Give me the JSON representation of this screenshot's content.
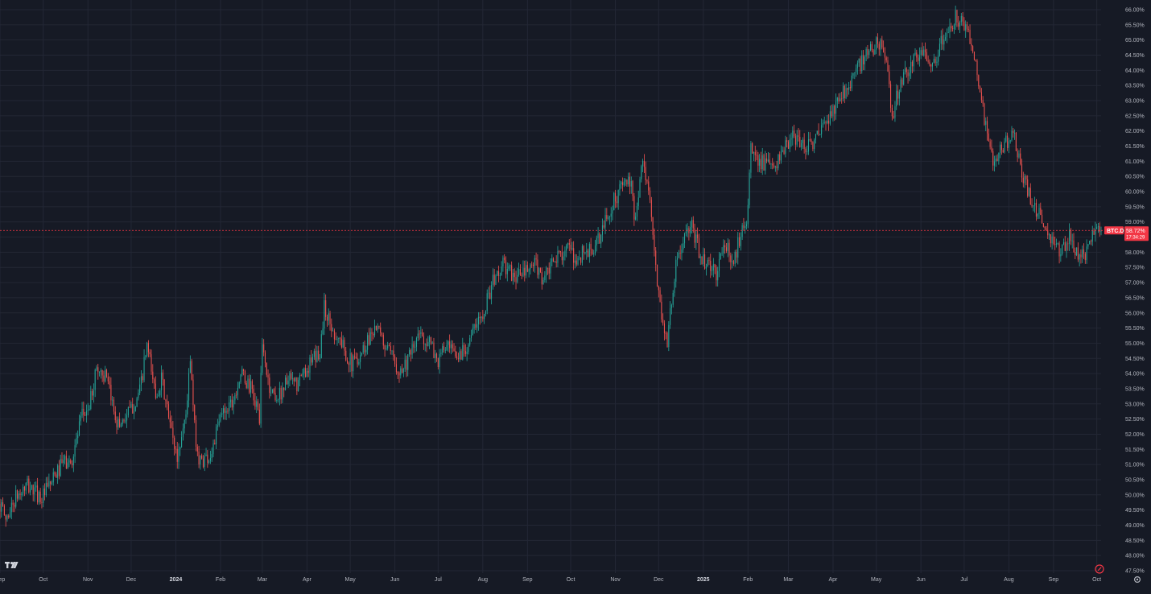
{
  "app": {
    "logo_text": "TV"
  },
  "colors": {
    "background": "#161a25",
    "grid": "#232735",
    "up": "#26a69a",
    "down": "#ef5350",
    "axis_text": "#b2b5be",
    "price_line": "#f23645"
  },
  "icons": {
    "logo": "tradingview-logo-icon",
    "compass": "compass-icon",
    "settings": "gear-icon"
  },
  "chart_data": {
    "type": "candlestick",
    "symbol": "BTC.D",
    "last_value": 58.72,
    "last_value_label": "58.72%",
    "countdown_label": "17:34:29",
    "ylim": [
      47.5,
      66.0
    ],
    "y_ticks": [
      "66.00%",
      "65.50%",
      "65.00%",
      "64.50%",
      "64.00%",
      "63.50%",
      "63.00%",
      "62.50%",
      "62.00%",
      "61.50%",
      "61.00%",
      "60.50%",
      "60.00%",
      "59.50%",
      "59.00%",
      "58.50%",
      "58.00%",
      "57.50%",
      "57.00%",
      "56.50%",
      "56.00%",
      "55.50%",
      "55.00%",
      "54.50%",
      "54.00%",
      "53.50%",
      "53.00%",
      "52.50%",
      "52.00%",
      "51.50%",
      "51.00%",
      "50.50%",
      "50.00%",
      "49.50%",
      "49.00%",
      "48.50%",
      "48.00%",
      "47.50%"
    ],
    "x_ticks": [
      {
        "label": "Sep",
        "date": "2023-09-01"
      },
      {
        "label": "Oct",
        "date": "2023-10-01"
      },
      {
        "label": "Nov",
        "date": "2023-11-01"
      },
      {
        "label": "Dec",
        "date": "2023-12-01"
      },
      {
        "label": "2024",
        "date": "2024-01-01",
        "year": true
      },
      {
        "label": "Feb",
        "date": "2024-02-01"
      },
      {
        "label": "Mar",
        "date": "2024-03-01"
      },
      {
        "label": "Apr",
        "date": "2024-04-01"
      },
      {
        "label": "May",
        "date": "2024-05-01"
      },
      {
        "label": "Jun",
        "date": "2024-06-01"
      },
      {
        "label": "Jul",
        "date": "2024-07-01"
      },
      {
        "label": "Aug",
        "date": "2024-08-01"
      },
      {
        "label": "Sep",
        "date": "2024-09-01"
      },
      {
        "label": "Oct",
        "date": "2024-10-01"
      },
      {
        "label": "Nov",
        "date": "2024-11-01"
      },
      {
        "label": "Dec",
        "date": "2024-12-01"
      },
      {
        "label": "2025",
        "date": "2025-01-01",
        "year": true
      },
      {
        "label": "Feb",
        "date": "2025-02-01"
      },
      {
        "label": "Mar",
        "date": "2025-03-01"
      },
      {
        "label": "Apr",
        "date": "2025-04-01"
      },
      {
        "label": "May",
        "date": "2025-05-01"
      },
      {
        "label": "Jun",
        "date": "2025-06-01"
      },
      {
        "label": "Jul",
        "date": "2025-07-01"
      },
      {
        "label": "Aug",
        "date": "2025-08-01"
      },
      {
        "label": "Sep",
        "date": "2025-09-01"
      },
      {
        "label": "Oct",
        "date": "2025-10-01"
      }
    ],
    "date_range": [
      "2023-09-01",
      "2025-10-04"
    ],
    "close_path": [
      {
        "date": "2023-09-01",
        "value": 49.7
      },
      {
        "date": "2023-09-05",
        "value": 49.2
      },
      {
        "date": "2023-09-12",
        "value": 49.9
      },
      {
        "date": "2023-09-20",
        "value": 50.3
      },
      {
        "date": "2023-09-30",
        "value": 49.9
      },
      {
        "date": "2023-10-08",
        "value": 50.5
      },
      {
        "date": "2023-10-15",
        "value": 51.1
      },
      {
        "date": "2023-10-20",
        "value": 51.0
      },
      {
        "date": "2023-10-28",
        "value": 52.6
      },
      {
        "date": "2023-11-02",
        "value": 52.9
      },
      {
        "date": "2023-11-07",
        "value": 54.2
      },
      {
        "date": "2023-11-13",
        "value": 53.9
      },
      {
        "date": "2023-11-22",
        "value": 52.3
      },
      {
        "date": "2023-12-01",
        "value": 52.8
      },
      {
        "date": "2023-12-07",
        "value": 53.4
      },
      {
        "date": "2023-12-12",
        "value": 54.9
      },
      {
        "date": "2023-12-18",
        "value": 53.3
      },
      {
        "date": "2023-12-22",
        "value": 53.8
      },
      {
        "date": "2023-12-28",
        "value": 52.3
      },
      {
        "date": "2024-01-02",
        "value": 51.2
      },
      {
        "date": "2024-01-08",
        "value": 52.7
      },
      {
        "date": "2024-01-11",
        "value": 54.4
      },
      {
        "date": "2024-01-14",
        "value": 52.2
      },
      {
        "date": "2024-01-17",
        "value": 51.1
      },
      {
        "date": "2024-01-25",
        "value": 51.3
      },
      {
        "date": "2024-02-02",
        "value": 52.7
      },
      {
        "date": "2024-02-10",
        "value": 53.2
      },
      {
        "date": "2024-02-15",
        "value": 54.0
      },
      {
        "date": "2024-02-22",
        "value": 53.5
      },
      {
        "date": "2024-02-28",
        "value": 52.6
      },
      {
        "date": "2024-03-01",
        "value": 54.9
      },
      {
        "date": "2024-03-06",
        "value": 53.5
      },
      {
        "date": "2024-03-12",
        "value": 53.2
      },
      {
        "date": "2024-03-18",
        "value": 53.8
      },
      {
        "date": "2024-03-25",
        "value": 53.6
      },
      {
        "date": "2024-04-01",
        "value": 54.2
      },
      {
        "date": "2024-04-10",
        "value": 54.7
      },
      {
        "date": "2024-04-13",
        "value": 56.2
      },
      {
        "date": "2024-04-18",
        "value": 55.5
      },
      {
        "date": "2024-04-25",
        "value": 55.0
      },
      {
        "date": "2024-05-02",
        "value": 54.3
      },
      {
        "date": "2024-05-10",
        "value": 54.8
      },
      {
        "date": "2024-05-18",
        "value": 55.6
      },
      {
        "date": "2024-05-23",
        "value": 55.1
      },
      {
        "date": "2024-05-30",
        "value": 54.5
      },
      {
        "date": "2024-06-05",
        "value": 54.1
      },
      {
        "date": "2024-06-12",
        "value": 54.6
      },
      {
        "date": "2024-06-18",
        "value": 55.3
      },
      {
        "date": "2024-06-25",
        "value": 55.0
      },
      {
        "date": "2024-07-01",
        "value": 54.4
      },
      {
        "date": "2024-07-06",
        "value": 54.9
      },
      {
        "date": "2024-07-14",
        "value": 54.5
      },
      {
        "date": "2024-07-20",
        "value": 54.9
      },
      {
        "date": "2024-07-28",
        "value": 55.6
      },
      {
        "date": "2024-08-03",
        "value": 56.3
      },
      {
        "date": "2024-08-08",
        "value": 57.0
      },
      {
        "date": "2024-08-15",
        "value": 57.6
      },
      {
        "date": "2024-08-22",
        "value": 57.2
      },
      {
        "date": "2024-08-30",
        "value": 57.3
      },
      {
        "date": "2024-09-06",
        "value": 57.6
      },
      {
        "date": "2024-09-12",
        "value": 57.1
      },
      {
        "date": "2024-09-20",
        "value": 57.7
      },
      {
        "date": "2024-09-28",
        "value": 58.2
      },
      {
        "date": "2024-10-04",
        "value": 57.7
      },
      {
        "date": "2024-10-10",
        "value": 58.0
      },
      {
        "date": "2024-10-18",
        "value": 58.1
      },
      {
        "date": "2024-10-25",
        "value": 59.0
      },
      {
        "date": "2024-11-01",
        "value": 59.8
      },
      {
        "date": "2024-11-08",
        "value": 60.4
      },
      {
        "date": "2024-11-12",
        "value": 60.1
      },
      {
        "date": "2024-11-14",
        "value": 59.1
      },
      {
        "date": "2024-11-20",
        "value": 61.0
      },
      {
        "date": "2024-11-24",
        "value": 60.1
      },
      {
        "date": "2024-11-28",
        "value": 57.9
      },
      {
        "date": "2024-12-04",
        "value": 55.6
      },
      {
        "date": "2024-12-07",
        "value": 55.1
      },
      {
        "date": "2024-12-12",
        "value": 57.3
      },
      {
        "date": "2024-12-18",
        "value": 58.4
      },
      {
        "date": "2024-12-24",
        "value": 58.8
      },
      {
        "date": "2024-12-30",
        "value": 57.9
      },
      {
        "date": "2025-01-05",
        "value": 57.5
      },
      {
        "date": "2025-01-10",
        "value": 57.3
      },
      {
        "date": "2025-01-16",
        "value": 58.3
      },
      {
        "date": "2025-01-22",
        "value": 57.6
      },
      {
        "date": "2025-01-28",
        "value": 58.9
      },
      {
        "date": "2025-02-01",
        "value": 59.3
      },
      {
        "date": "2025-02-03",
        "value": 61.4
      },
      {
        "date": "2025-02-10",
        "value": 61.0
      },
      {
        "date": "2025-02-18",
        "value": 60.7
      },
      {
        "date": "2025-02-25",
        "value": 61.3
      },
      {
        "date": "2025-03-05",
        "value": 61.8
      },
      {
        "date": "2025-03-12",
        "value": 61.5
      },
      {
        "date": "2025-03-20",
        "value": 61.7
      },
      {
        "date": "2025-03-28",
        "value": 62.3
      },
      {
        "date": "2025-04-05",
        "value": 63.0
      },
      {
        "date": "2025-04-12",
        "value": 63.6
      },
      {
        "date": "2025-04-20",
        "value": 64.2
      },
      {
        "date": "2025-04-28",
        "value": 64.7
      },
      {
        "date": "2025-05-04",
        "value": 65.0
      },
      {
        "date": "2025-05-08",
        "value": 64.1
      },
      {
        "date": "2025-05-12",
        "value": 62.5
      },
      {
        "date": "2025-05-17",
        "value": 63.5
      },
      {
        "date": "2025-05-25",
        "value": 64.2
      },
      {
        "date": "2025-06-02",
        "value": 64.6
      },
      {
        "date": "2025-06-10",
        "value": 64.3
      },
      {
        "date": "2025-06-18",
        "value": 65.2
      },
      {
        "date": "2025-06-26",
        "value": 65.8
      },
      {
        "date": "2025-07-03",
        "value": 65.2
      },
      {
        "date": "2025-07-08",
        "value": 64.6
      },
      {
        "date": "2025-07-15",
        "value": 62.4
      },
      {
        "date": "2025-07-21",
        "value": 60.8
      },
      {
        "date": "2025-07-27",
        "value": 61.4
      },
      {
        "date": "2025-08-04",
        "value": 62.0
      },
      {
        "date": "2025-08-10",
        "value": 60.5
      },
      {
        "date": "2025-08-18",
        "value": 59.6
      },
      {
        "date": "2025-08-25",
        "value": 59.0
      },
      {
        "date": "2025-09-01",
        "value": 58.2
      },
      {
        "date": "2025-09-06",
        "value": 58.0
      },
      {
        "date": "2025-09-12",
        "value": 58.6
      },
      {
        "date": "2025-09-18",
        "value": 57.9
      },
      {
        "date": "2025-09-22",
        "value": 57.8
      },
      {
        "date": "2025-09-27",
        "value": 58.4
      },
      {
        "date": "2025-10-01",
        "value": 58.9
      },
      {
        "date": "2025-10-04",
        "value": 58.72
      }
    ]
  }
}
